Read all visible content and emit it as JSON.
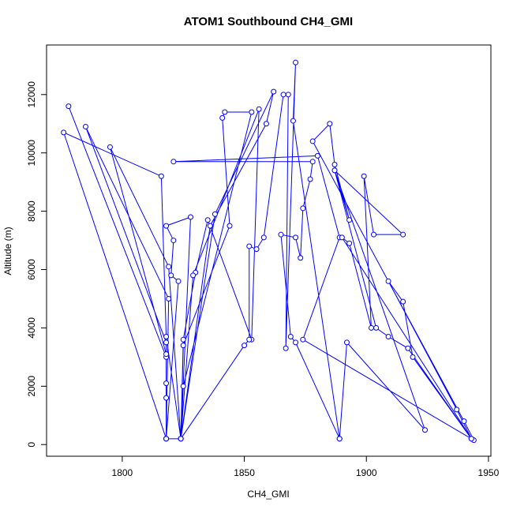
{
  "chart_data": {
    "type": "line",
    "title": "ATOM1 Southbound CH4_GMI",
    "xlabel": "CH4_GMI",
    "ylabel": "Altitude (m)",
    "color": "#0000ff",
    "markers": true,
    "x": [
      1778,
      1818,
      1818,
      1818,
      1818,
      1824,
      1825,
      1844,
      1841,
      1842,
      1853,
      1825,
      1824,
      1818,
      1776,
      1816,
      1818,
      1824,
      1825,
      1830,
      1835,
      1853,
      1856,
      1829,
      1824,
      1818,
      1818,
      1785,
      1819,
      1818,
      1824,
      1836,
      1859,
      1862,
      1838,
      1824,
      1819,
      1795,
      1818,
      1818,
      1824,
      1828,
      1818,
      1821,
      1820,
      1823,
      1818,
      1824,
      1850,
      1852,
      1852,
      1855,
      1858,
      1866,
      1868,
      1867,
      1871,
      1870,
      1889,
      1889,
      1871,
      1869,
      1865,
      1871,
      1873,
      1874,
      1877,
      1878,
      1821,
      1880,
      1889,
      1874,
      1943,
      1944,
      1940,
      1878,
      1885,
      1887,
      1893,
      1887,
      1915,
      1903,
      1899,
      1902,
      1893,
      1890,
      1943,
      1937,
      1909,
      1915,
      1919,
      1943,
      1917,
      1909,
      1904,
      1887,
      1924,
      1892,
      1889
    ],
    "y": [
      11600,
      3000,
      2100,
      1600,
      200,
      200,
      3400,
      7500,
      11200,
      11400,
      11400,
      2000,
      200,
      200,
      10700,
      9200,
      3700,
      200,
      3600,
      5900,
      7700,
      3600,
      11500,
      5800,
      200,
      200,
      3500,
      10900,
      5000,
      200,
      200,
      7500,
      11000,
      12100,
      7900,
      200,
      6100,
      10200,
      3100,
      200,
      200,
      7800,
      7500,
      7000,
      5800,
      5600,
      200,
      200,
      3400,
      3600,
      6800,
      6700,
      7100,
      12000,
      12000,
      3300,
      13100,
      11100,
      200,
      200,
      3500,
      3700,
      7200,
      7100,
      6400,
      8100,
      9100,
      9700,
      9700,
      9900,
      7100,
      3600,
      200,
      150,
      800,
      10400,
      11000,
      9600,
      7700,
      9400,
      7200,
      7200,
      9200,
      4000,
      6900,
      7100,
      200,
      1200,
      5600,
      4900,
      3000,
      200,
      3300,
      3700,
      4000,
      9400,
      500,
      3500,
      200
    ],
    "xlim": [
      1769,
      1951
    ],
    "ylim": [
      -400,
      13700
    ],
    "xticks": [
      1800,
      1850,
      1900,
      1950
    ],
    "yticks": [
      0,
      2000,
      4000,
      6000,
      8000,
      10000,
      12000
    ]
  }
}
